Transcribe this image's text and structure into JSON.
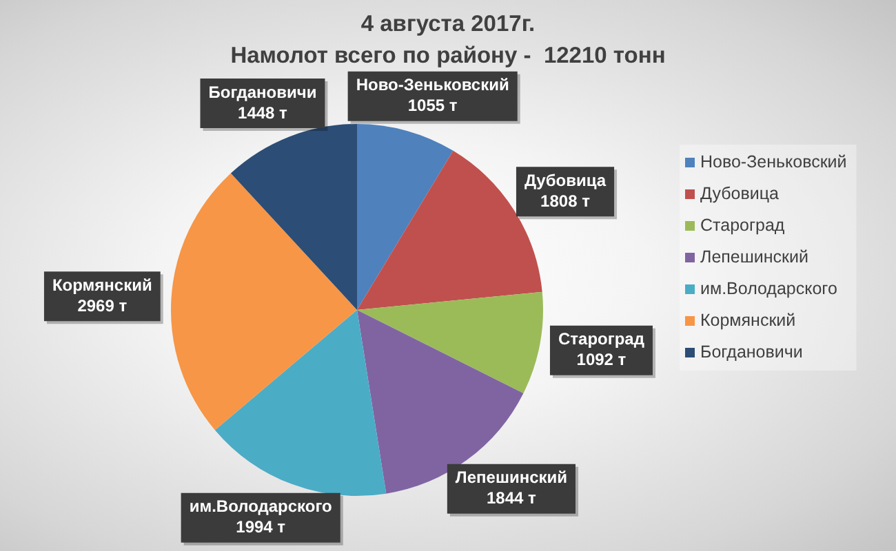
{
  "chart_data": {
    "type": "pie",
    "title": "4 августа 2017г.",
    "subtitle": "Намолот всего по району -  12210 тонн",
    "categories": [
      "Ново-Зеньковский",
      "Дубовица",
      "Староград",
      "Лепешинский",
      "им.Володарского",
      "Кормянский",
      "Богдановичи"
    ],
    "values": [
      1055,
      1808,
      1092,
      1844,
      1994,
      2969,
      1448
    ],
    "colors": [
      "#4f81bd",
      "#c0504d",
      "#9bbb59",
      "#8064a2",
      "#4bacc6",
      "#f79646",
      "#2c4d75"
    ],
    "value_labels": [
      "1055 т",
      "1808 т",
      "1092 т",
      "1844 т",
      "1994 т",
      "2969 т",
      "1448 т"
    ],
    "legend": "right"
  }
}
